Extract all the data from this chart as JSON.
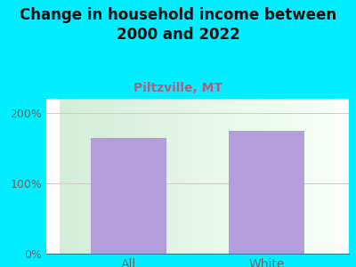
{
  "title": "Change in household income between\n2000 and 2022",
  "subtitle": "Piltzville, MT",
  "categories": [
    "All",
    "White"
  ],
  "values": [
    165,
    175
  ],
  "bar_color": "#b39ddb",
  "background_color": "#00eeff",
  "plot_bg_left": "#d4edda",
  "plot_bg_right": "#f8fff8",
  "title_fontsize": 12,
  "subtitle_fontsize": 10,
  "tick_fontsize": 9,
  "cat_fontsize": 10,
  "ylim_max": 220,
  "yticks": [
    0,
    100,
    200
  ],
  "ytick_labels": [
    "0%",
    "100%",
    "200%"
  ],
  "title_color": "#111111",
  "subtitle_color": "#b06080",
  "tick_color": "#666666",
  "grid_color": "#cccccc",
  "bar_width": 0.55
}
